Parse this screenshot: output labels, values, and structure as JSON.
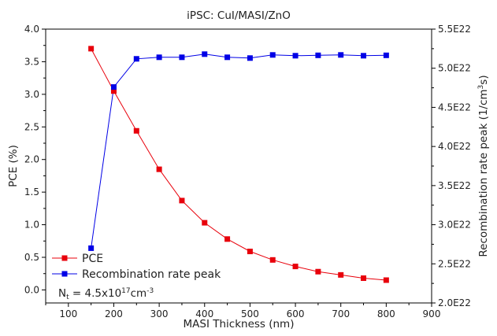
{
  "chart_data": {
    "type": "line",
    "title": "iPSC: CuI/MASI/ZnO",
    "xlabel": "MASI Thickness (nm)",
    "ylabel": "PCE (%)",
    "y2label": "Recombination rate peak (1/cm³s)",
    "y2label_parts": {
      "main": "Recombination rate peak (1/cm",
      "sup": "3",
      "tail": "s)"
    },
    "xlim": [
      50,
      900
    ],
    "ylim": [
      -0.2,
      4.0
    ],
    "y2lim": [
      2e+22,
      5.5e+22
    ],
    "xticks": [
      "100",
      "200",
      "300",
      "400",
      "500",
      "600",
      "700",
      "800",
      "900"
    ],
    "yticks": [
      "0.0",
      "0.5",
      "1.0",
      "1.5",
      "2.0",
      "2.5",
      "3.0",
      "3.5",
      "4.0"
    ],
    "y2ticks": [
      "2.0E22",
      "2.5E22",
      "3.0E22",
      "3.5E22",
      "4.0E22",
      "4.5E22",
      "5.0E22",
      "5.5E22"
    ],
    "x": [
      150,
      200,
      250,
      300,
      350,
      400,
      450,
      500,
      550,
      600,
      650,
      700,
      750,
      800
    ],
    "series": [
      {
        "name": "PCE",
        "axis": "left",
        "color": "#e8000b",
        "values": [
          3.7,
          3.05,
          2.44,
          1.85,
          1.37,
          1.03,
          0.78,
          0.59,
          0.46,
          0.36,
          0.28,
          0.23,
          0.18,
          0.15
        ]
      },
      {
        "name": "Recombination rate peak",
        "axis": "right",
        "color": "#0000e6",
        "values": [
          2.7e+22,
          4.76e+22,
          5.12e+22,
          5.14e+22,
          5.14e+22,
          5.18e+22,
          5.14e+22,
          5.13e+22,
          5.17e+22,
          5.16e+22,
          5.165e+22,
          5.17e+22,
          5.16e+22,
          5.165e+22
        ]
      }
    ],
    "annotation": {
      "prefix": "N",
      "sub": "t",
      "mid": " = 4.5x10",
      "sup": "17",
      "tail": "cm",
      "sup2": "-3"
    },
    "legend_position": "bottom-left",
    "grid": false
  }
}
